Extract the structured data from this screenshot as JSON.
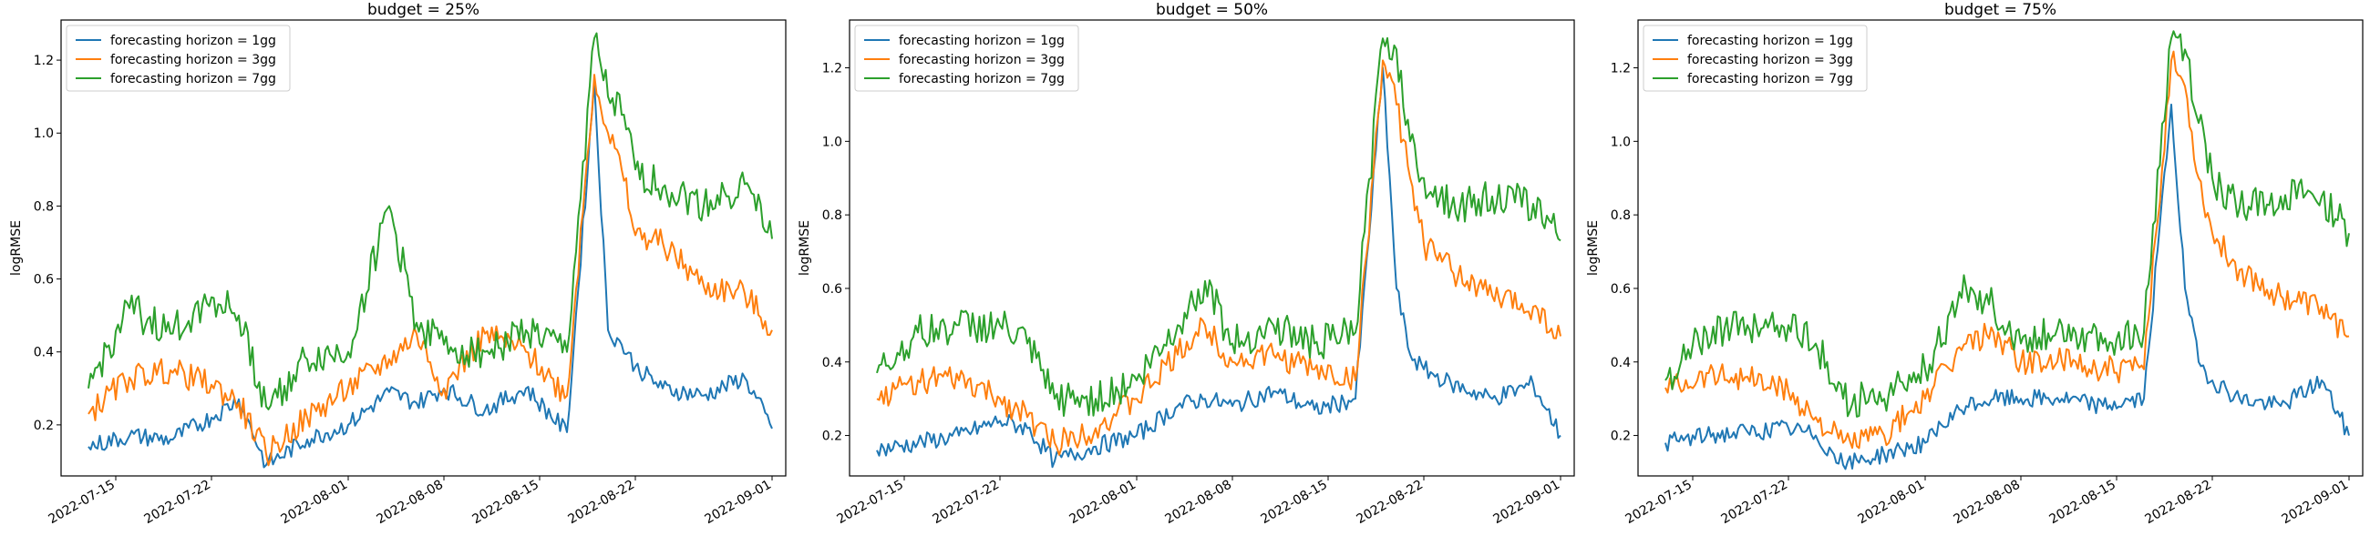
{
  "colors": {
    "h1": "#1f77b4",
    "h3": "#ff7f0e",
    "h7": "#2ca02c"
  },
  "chart_data": [
    {
      "type": "line",
      "title": "budget = 25%",
      "xlabel": "",
      "ylabel": "logRMSE",
      "x_ticks": [
        "2022-07-15",
        "2022-07-22",
        "2022-08-01",
        "2022-08-08",
        "2022-08-15",
        "2022-08-22",
        "2022-09-01"
      ],
      "y_ticks": [
        "0.2",
        "0.4",
        "0.6",
        "0.8",
        "1.0",
        "1.2"
      ],
      "xlim": [
        "2022-07-11",
        "2022-09-02"
      ],
      "ylim": [
        0.06,
        1.31
      ],
      "legend": "upper left",
      "x": [
        "2022-07-13",
        "2022-07-16",
        "2022-07-19",
        "2022-07-22",
        "2022-07-24",
        "2022-07-26",
        "2022-07-29",
        "2022-08-01",
        "2022-08-04",
        "2022-08-06",
        "2022-08-08",
        "2022-08-11",
        "2022-08-14",
        "2022-08-17",
        "2022-08-19",
        "2022-08-20",
        "2022-08-21",
        "2022-08-22",
        "2022-08-24",
        "2022-08-27",
        "2022-08-30",
        "2022-09-01"
      ],
      "series": [
        {
          "name": "forecasting horizon = 1gg",
          "color_key": "h1",
          "values": [
            0.14,
            0.17,
            0.16,
            0.22,
            0.27,
            0.09,
            0.16,
            0.2,
            0.29,
            0.26,
            0.3,
            0.24,
            0.3,
            0.18,
            1.14,
            0.46,
            0.42,
            0.36,
            0.3,
            0.28,
            0.33,
            0.19
          ]
        },
        {
          "name": "forecasting horizon = 3gg",
          "color_key": "h3",
          "values": [
            0.23,
            0.33,
            0.35,
            0.31,
            0.26,
            0.12,
            0.22,
            0.3,
            0.38,
            0.45,
            0.3,
            0.45,
            0.4,
            0.28,
            1.16,
            1.0,
            0.9,
            0.72,
            0.7,
            0.58,
            0.56,
            0.46
          ]
        },
        {
          "name": "forecasting horizon = 7gg",
          "color_key": "h7",
          "values": [
            0.3,
            0.52,
            0.45,
            0.55,
            0.5,
            0.25,
            0.38,
            0.4,
            0.8,
            0.48,
            0.42,
            0.4,
            0.46,
            0.4,
            1.26,
            1.1,
            1.05,
            0.9,
            0.85,
            0.8,
            0.86,
            0.71
          ]
        }
      ]
    },
    {
      "type": "line",
      "title": "budget = 50%",
      "xlabel": "",
      "ylabel": "logRMSE",
      "x_ticks": [
        "2022-07-15",
        "2022-07-22",
        "2022-08-01",
        "2022-08-08",
        "2022-08-15",
        "2022-08-22",
        "2022-09-01"
      ],
      "y_ticks": [
        "0.2",
        "0.4",
        "0.6",
        "0.8",
        "1.0",
        "1.2"
      ],
      "xlim": [
        "2022-07-11",
        "2022-09-02"
      ],
      "ylim": [
        0.09,
        1.33
      ],
      "legend": "upper left",
      "x": [
        "2022-07-13",
        "2022-07-16",
        "2022-07-19",
        "2022-07-22",
        "2022-07-24",
        "2022-07-26",
        "2022-07-29",
        "2022-08-01",
        "2022-08-04",
        "2022-08-06",
        "2022-08-08",
        "2022-08-11",
        "2022-08-14",
        "2022-08-17",
        "2022-08-19",
        "2022-08-20",
        "2022-08-21",
        "2022-08-22",
        "2022-08-24",
        "2022-08-27",
        "2022-08-30",
        "2022-09-01"
      ],
      "series": [
        {
          "name": "forecasting horizon = 1gg",
          "color_key": "h1",
          "values": [
            0.16,
            0.18,
            0.2,
            0.24,
            0.22,
            0.13,
            0.17,
            0.2,
            0.28,
            0.3,
            0.28,
            0.32,
            0.27,
            0.3,
            1.2,
            0.6,
            0.42,
            0.38,
            0.34,
            0.3,
            0.34,
            0.2
          ]
        },
        {
          "name": "forecasting horizon = 3gg",
          "color_key": "h3",
          "values": [
            0.3,
            0.35,
            0.35,
            0.3,
            0.25,
            0.18,
            0.22,
            0.3,
            0.42,
            0.5,
            0.4,
            0.42,
            0.38,
            0.35,
            1.22,
            1.1,
            0.9,
            0.72,
            0.65,
            0.58,
            0.55,
            0.47
          ]
        },
        {
          "name": "forecasting horizon = 7gg",
          "color_key": "h7",
          "values": [
            0.37,
            0.48,
            0.5,
            0.5,
            0.45,
            0.3,
            0.3,
            0.35,
            0.5,
            0.62,
            0.45,
            0.5,
            0.45,
            0.48,
            1.28,
            1.25,
            1.0,
            0.9,
            0.82,
            0.85,
            0.83,
            0.73
          ]
        }
      ]
    },
    {
      "type": "line",
      "title": "budget = 75%",
      "xlabel": "",
      "ylabel": "logRMSE",
      "x_ticks": [
        "2022-07-15",
        "2022-07-22",
        "2022-08-01",
        "2022-08-08",
        "2022-08-15",
        "2022-08-22",
        "2022-09-01"
      ],
      "y_ticks": [
        "0.2",
        "0.4",
        "0.6",
        "0.8",
        "1.0",
        "1.2"
      ],
      "xlim": [
        "2022-07-11",
        "2022-09-02"
      ],
      "ylim": [
        0.09,
        1.33
      ],
      "legend": "upper left",
      "x": [
        "2022-07-13",
        "2022-07-16",
        "2022-07-19",
        "2022-07-22",
        "2022-07-24",
        "2022-07-26",
        "2022-07-29",
        "2022-08-01",
        "2022-08-04",
        "2022-08-06",
        "2022-08-08",
        "2022-08-11",
        "2022-08-14",
        "2022-08-17",
        "2022-08-19",
        "2022-08-20",
        "2022-08-21",
        "2022-08-22",
        "2022-08-24",
        "2022-08-27",
        "2022-08-30",
        "2022-09-01"
      ],
      "series": [
        {
          "name": "forecasting horizon = 1gg",
          "color_key": "h1",
          "values": [
            0.18,
            0.2,
            0.21,
            0.22,
            0.2,
            0.12,
            0.15,
            0.18,
            0.28,
            0.3,
            0.3,
            0.3,
            0.28,
            0.3,
            1.1,
            0.6,
            0.4,
            0.35,
            0.3,
            0.28,
            0.35,
            0.2
          ]
        },
        {
          "name": "forecasting horizon = 3gg",
          "color_key": "h3",
          "values": [
            0.33,
            0.37,
            0.36,
            0.32,
            0.25,
            0.18,
            0.2,
            0.3,
            0.45,
            0.48,
            0.4,
            0.4,
            0.38,
            0.38,
            1.22,
            1.15,
            0.9,
            0.75,
            0.65,
            0.58,
            0.55,
            0.47
          ]
        },
        {
          "name": "forecasting horizon = 7gg",
          "color_key": "h7",
          "values": [
            0.35,
            0.48,
            0.5,
            0.5,
            0.45,
            0.3,
            0.3,
            0.38,
            0.6,
            0.55,
            0.45,
            0.5,
            0.45,
            0.48,
            1.28,
            1.25,
            1.05,
            0.9,
            0.82,
            0.85,
            0.85,
            0.75
          ]
        }
      ]
    }
  ]
}
